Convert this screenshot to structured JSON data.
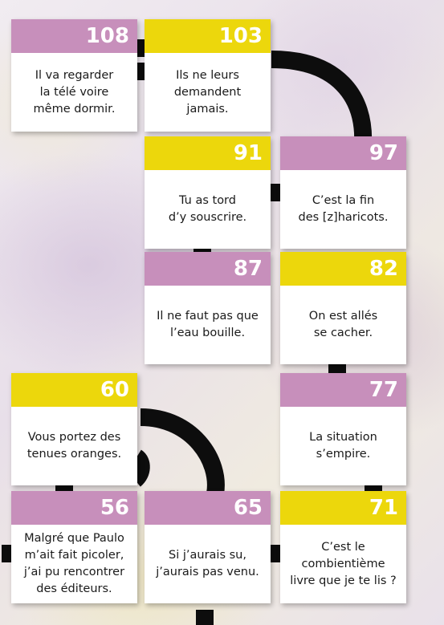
{
  "colors": {
    "pink": "#c78fbb",
    "yellow": "#ecd70c",
    "track": "#0d0d0d"
  },
  "cards": [
    {
      "id": "108",
      "number": "108",
      "color": "pink",
      "text": "Il va regarder\nla télé voire\nmême dormir."
    },
    {
      "id": "103",
      "number": "103",
      "color": "yellow",
      "text": "Ils ne leurs\ndemandent\njamais."
    },
    {
      "id": "91",
      "number": "91",
      "color": "yellow",
      "text": "Tu as tord\nd’y souscrire."
    },
    {
      "id": "97",
      "number": "97",
      "color": "pink",
      "text": "C’est la fin\ndes [z]haricots."
    },
    {
      "id": "87",
      "number": "87",
      "color": "pink",
      "text": "Il ne faut pas que\nl’eau bouille."
    },
    {
      "id": "82",
      "number": "82",
      "color": "yellow",
      "text": "On est allés\nse cacher."
    },
    {
      "id": "60",
      "number": "60",
      "color": "yellow",
      "text": "Vous portez des\ntenues oranges."
    },
    {
      "id": "77",
      "number": "77",
      "color": "pink",
      "text": "La situation\ns’empire."
    },
    {
      "id": "56",
      "number": "56",
      "color": "pink",
      "text": "Malgré que Paulo\nm’ait fait picoler,\nj’ai pu rencontrer\ndes éditeurs."
    },
    {
      "id": "65",
      "number": "65",
      "color": "pink",
      "text": "Si j’aurais su,\nj’aurais pas venu."
    },
    {
      "id": "71",
      "number": "71",
      "color": "yellow",
      "text": "C’est le\ncombientième\nlivre que je te lis ?"
    }
  ]
}
